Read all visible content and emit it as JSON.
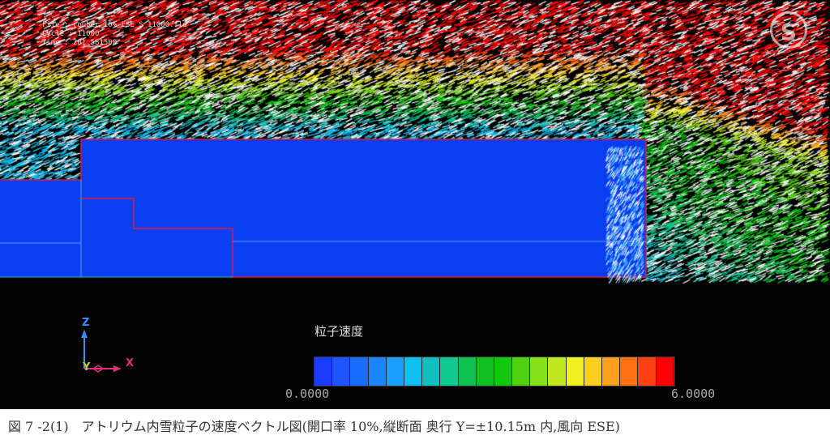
{
  "sim_info": {
    "file": "File : rouber_10%_ESE_S_11000.fld",
    "cycle": "Cycle : 11000",
    "time": "Time : 201.581500"
  },
  "axes": {
    "z": "Z",
    "y": "Y",
    "x": "X"
  },
  "legend": {
    "title": "粒子速度",
    "min": "0.0000",
    "max": "6.0000",
    "colors": [
      "#1a3cff",
      "#1a55ff",
      "#1a6cff",
      "#1a85ff",
      "#1aa0ff",
      "#10c0f0",
      "#10c0c0",
      "#10c890",
      "#10c050",
      "#10c020",
      "#10c810",
      "#50d010",
      "#88e018",
      "#c0e820",
      "#f0f020",
      "#ffd020",
      "#ffa020",
      "#ff7010",
      "#ff4010",
      "#ff0000"
    ]
  },
  "caption": "図 7 -2(1)　アトリウム内雪粒子の速度ベクトル図(開口率 10%,縦断面  奥行 Y=±10.15m 内,風向 ESE)",
  "colors": {
    "building": "#0a3cf0",
    "outline": "#e0203c",
    "background": "#000000"
  }
}
